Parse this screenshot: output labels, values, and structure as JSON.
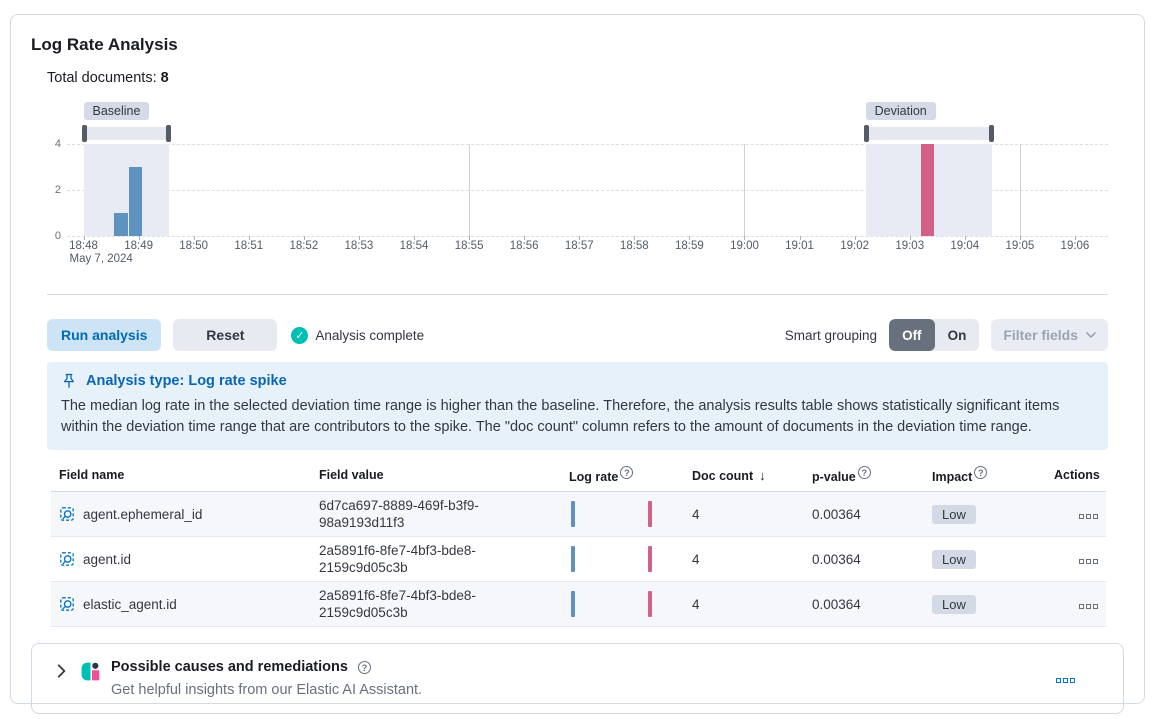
{
  "panel": {
    "title": "Log Rate Analysis"
  },
  "summary": {
    "label": "Total documents:",
    "value": "8"
  },
  "chart_data": {
    "type": "bar",
    "title": "Document count histogram with baseline and deviation selections",
    "x_axis_date_label": "May 7, 2024",
    "xticks": [
      "18:48",
      "18:49",
      "18:50",
      "18:51",
      "18:52",
      "18:53",
      "18:54",
      "18:55",
      "18:56",
      "18:57",
      "18:58",
      "18:59",
      "19:00",
      "19:01",
      "19:02",
      "19:03",
      "19:04",
      "19:05",
      "19:06"
    ],
    "x_domain_minutes": [
      -0.3,
      18.6
    ],
    "yticks": [
      0,
      2,
      4
    ],
    "ylim": [
      0,
      4
    ],
    "vertical_gridline_minutes": [
      7,
      12,
      17
    ],
    "bar_width_minutes": 0.25,
    "series": [
      {
        "name": "Baseline",
        "color": "#6092C0",
        "bars": [
          {
            "minute": 0.55,
            "value": 1
          },
          {
            "minute": 0.82,
            "value": 3
          }
        ]
      },
      {
        "name": "Deviation",
        "color": "#D36086",
        "bars": [
          {
            "minute": 15.2,
            "value": 4
          }
        ]
      }
    ],
    "brushes": [
      {
        "label": "Baseline",
        "start_minute": 0.0,
        "end_minute": 1.55
      },
      {
        "label": "Deviation",
        "start_minute": 14.2,
        "end_minute": 16.5
      }
    ]
  },
  "toolbar": {
    "run_label": "Run analysis",
    "reset_label": "Reset",
    "status_label": "Analysis complete",
    "smart_grouping_label": "Smart grouping",
    "off_label": "Off",
    "on_label": "On",
    "filter_fields_label": "Filter fields"
  },
  "callout": {
    "title": "Analysis type: Log rate spike",
    "body": "The median log rate in the selected deviation time range is higher than the baseline. Therefore, the analysis results table shows statistically significant items within the deviation time range that are contributors to the spike. The \"doc count\" column refers to the amount of documents in the deviation time range."
  },
  "table": {
    "sort_icon": "↓",
    "columns": [
      {
        "label": "Field name"
      },
      {
        "label": "Field value"
      },
      {
        "label": "Log rate",
        "info": true
      },
      {
        "label": "Doc count",
        "sort": "desc"
      },
      {
        "label": "p-value",
        "info": true
      },
      {
        "label": "Impact",
        "info": true
      },
      {
        "label": "Actions"
      }
    ],
    "rows": [
      {
        "field_name": "agent.ephemeral_id",
        "field_value": "6d7ca697-8889-469f-b3f9-98a9193d11f3",
        "doc_count": "4",
        "p_value": "0.00364",
        "impact": "Low"
      },
      {
        "field_name": "agent.id",
        "field_value": "2a5891f6-8fe7-4bf3-bde8-2159c9d05c3b",
        "doc_count": "4",
        "p_value": "0.00364",
        "impact": "Low"
      },
      {
        "field_name": "elastic_agent.id",
        "field_value": "2a5891f6-8fe7-4bf3-bde8-2159c9d05c3b",
        "doc_count": "4",
        "p_value": "0.00364",
        "impact": "Low"
      }
    ]
  },
  "footer": {
    "title": "Possible causes and remediations",
    "subtitle": "Get helpful insights from our Elastic AI Assistant."
  },
  "colors": {
    "baseline_bar": "#6092C0",
    "deviation_bar": "#D36086",
    "primary": "#006BB4",
    "success": "#00BFB3",
    "accent_pink": "#F04E98",
    "teal": "#00BFB3"
  }
}
